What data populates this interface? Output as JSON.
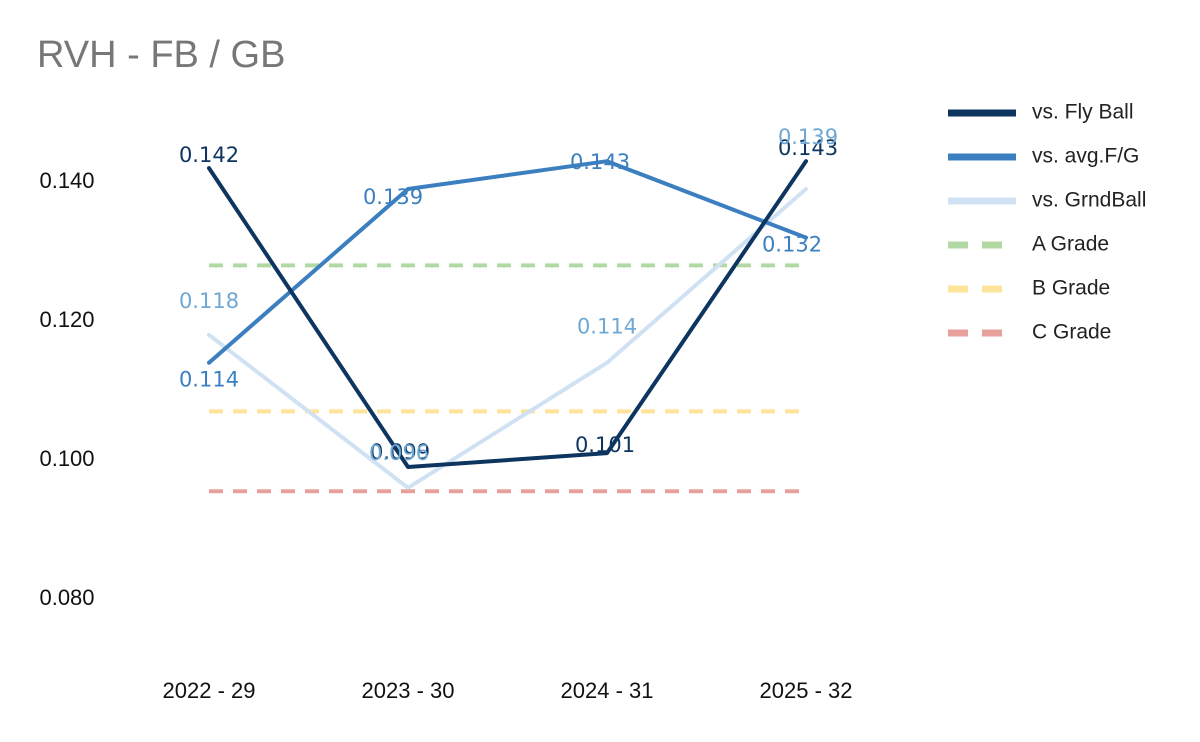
{
  "chart_data": {
    "type": "line",
    "title": "RVH - FB / GB",
    "xlabel": "",
    "ylabel": "",
    "categories": [
      "2022 - 29",
      "2023 - 30",
      "2024 - 31",
      "2025 - 32"
    ],
    "ylim": [
      0.07,
      0.153
    ],
    "yticks": [
      0.08,
      0.1,
      0.12,
      0.14
    ],
    "ytick_labels": [
      "0.080",
      "0.100",
      "0.120",
      "0.140"
    ],
    "series": [
      {
        "name": "vs. Fly Ball",
        "color": "#0d3560",
        "values": [
          0.142,
          0.099,
          0.101,
          0.143
        ],
        "labels": [
          "0.142",
          "0.099",
          "0.101",
          "0.143"
        ]
      },
      {
        "name": "vs. avg.F/G",
        "color": "#3b7fc0",
        "values": [
          0.114,
          0.139,
          0.143,
          0.132
        ],
        "labels": [
          "0.114",
          "0.139",
          "0.143",
          "0.132"
        ]
      },
      {
        "name": "vs. GrndBall",
        "color": "#cfe1f2",
        "label_color": "#6fa8d4",
        "values": [
          0.118,
          0.096,
          0.114,
          0.139
        ],
        "labels": [
          "0.118",
          "0.096",
          "0.114",
          "0.139"
        ]
      }
    ],
    "reference_lines": [
      {
        "name": "A Grade",
        "value": 0.128,
        "color": "#b2d9a3"
      },
      {
        "name": "B Grade",
        "value": 0.107,
        "color": "#fde49a"
      },
      {
        "name": "C Grade",
        "value": 0.0955,
        "color": "#e8a09c"
      }
    ],
    "legend_position": "top-right",
    "grid": false
  }
}
